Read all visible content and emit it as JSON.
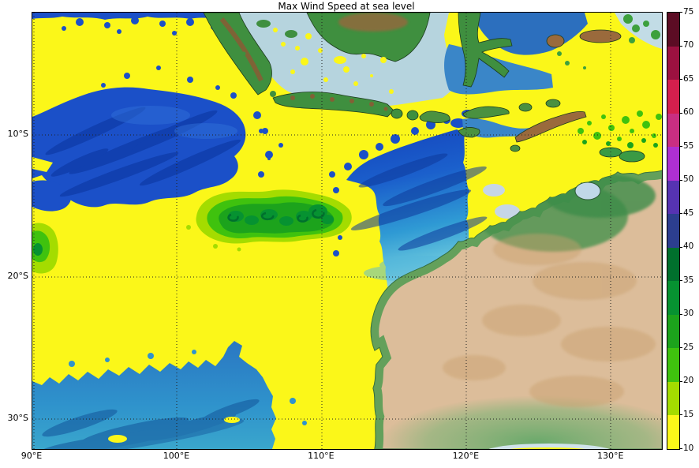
{
  "figure": {
    "title": "Max Wind Speed at sea level",
    "background_color": "#ffffff"
  },
  "axes": {
    "x_tick_labels": [
      "90°E",
      "100°E",
      "110°E",
      "120°E",
      "130°E"
    ],
    "x_tick_values": [
      90,
      100,
      110,
      120,
      130
    ],
    "y_tick_labels": [
      "10°S",
      "20°S",
      "30°S"
    ],
    "y_tick_values": [
      -10,
      -20,
      -30
    ],
    "lon_range": [
      90,
      133.5
    ],
    "lat_range": [
      -32.1,
      -1.4
    ],
    "gridline_style": "dotted black graticule every 10 degrees"
  },
  "colorbar": {
    "tick_labels": [
      "10",
      "15",
      "20",
      "25",
      "30",
      "35",
      "40",
      "45",
      "50",
      "55",
      "60",
      "65",
      "70",
      "75"
    ],
    "tick_values": [
      10,
      15,
      20,
      25,
      30,
      35,
      40,
      45,
      50,
      55,
      60,
      65,
      70,
      75
    ],
    "segments": [
      {
        "from": 10,
        "to": 15,
        "color": "#fbf719"
      },
      {
        "from": 15,
        "to": 20,
        "color": "#a4dc00"
      },
      {
        "from": 20,
        "to": 25,
        "color": "#3fc20e"
      },
      {
        "from": 25,
        "to": 30,
        "color": "#1ca31c"
      },
      {
        "from": 30,
        "to": 35,
        "color": "#069231"
      },
      {
        "from": 35,
        "to": 40,
        "color": "#00702d"
      },
      {
        "from": 40,
        "to": 45,
        "color": "#2c3e8f"
      },
      {
        "from": 45,
        "to": 50,
        "color": "#5633b2"
      },
      {
        "from": 50,
        "to": 55,
        "color": "#ae2fd2"
      },
      {
        "from": 55,
        "to": 60,
        "color": "#c92e82"
      },
      {
        "from": 60,
        "to": 65,
        "color": "#d41f4d"
      },
      {
        "from": 65,
        "to": 70,
        "color": "#9c1140"
      },
      {
        "from": 70,
        "to": 75,
        "color": "#5c0c24"
      }
    ]
  },
  "chart_data": {
    "type": "heatmap",
    "title": "Max Wind Speed at sea level",
    "xlabel": "",
    "ylabel": "",
    "x_ticks": [
      "90°E",
      "100°E",
      "110°E",
      "120°E",
      "130°E"
    ],
    "y_ticks": [
      "10°S",
      "20°S",
      "30°S"
    ],
    "lon_range_deg_east": [
      90,
      133.5
    ],
    "lat_range_deg": [
      -32.1,
      -1.4
    ],
    "colorbar_levels": [
      10,
      15,
      20,
      25,
      30,
      35,
      40,
      45,
      50,
      55,
      60,
      65,
      70,
      75
    ],
    "colorbar_colors": [
      "#fbf719",
      "#a4dc00",
      "#3fc20e",
      "#1ca31c",
      "#069231",
      "#00702d",
      "#2c3e8f",
      "#5633b2",
      "#ae2fd2",
      "#c92e82",
      "#d41f4d",
      "#9c1140",
      "#5c0c24"
    ],
    "legend_position": "right",
    "grid": true,
    "basemap": "shaded-relief terrain with ocean bathymetry (Indonesia, eastern Indian Ocean, northwest Australia)",
    "features": [
      {
        "name": "background wind field",
        "value_range": [
          10,
          15
        ],
        "coverage": "most of the ocean (solid yellow)"
      },
      {
        "name": "cyclone track swath",
        "value_range": [
          15,
          35
        ],
        "lat": -15,
        "lon_range": [
          101,
          110.5
        ],
        "shape": "elongated east-west blob with nested contours and 30-35 cores"
      },
      {
        "name": "west-edge wind patch",
        "value_range": [
          15,
          30
        ],
        "lat": -17.5,
        "lon": 90
      },
      {
        "name": "wind speckles",
        "value_range": [
          15,
          25
        ],
        "region": "Timor Sea around 128-133E, 8.5-10S"
      },
      {
        "name": "unshaded ocean (wind below 10 / masked, bathymetry visible)",
        "regions": [
          "basin near 93-105E, 7-14S",
          "basin near 112-120E, 10-18S",
          "southwest corner south of 27S west of 107E",
          "narrow strip along the top edge"
        ]
      }
    ]
  }
}
